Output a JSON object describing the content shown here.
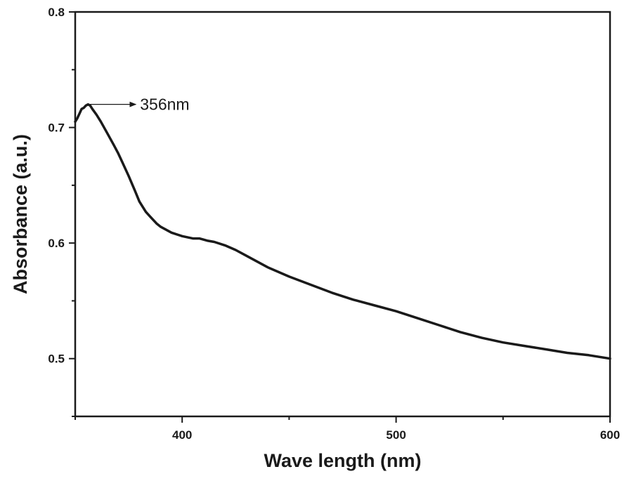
{
  "chart_data": {
    "type": "line",
    "xlabel": "Wave length (nm)",
    "ylabel": "Absorbance (a.u.)",
    "xlim": [
      350,
      600
    ],
    "ylim": [
      0.45,
      0.8
    ],
    "x_ticks": [
      400,
      500,
      600
    ],
    "y_ticks": [
      0.5,
      0.6,
      0.7,
      0.8
    ],
    "x_tick_labels": [
      "400",
      "500",
      "600"
    ],
    "y_tick_labels": [
      "0.5",
      "0.6",
      "0.7",
      "0.8"
    ],
    "grid": false,
    "legend": "none",
    "line_color": "#1a1a1a",
    "annotation": {
      "text": "356nm",
      "x": 356,
      "y": 0.72
    },
    "series": [
      {
        "x": [
          350,
          351,
          352,
          353,
          354,
          355,
          356,
          357,
          358,
          360,
          362,
          365,
          368,
          370,
          372,
          375,
          378,
          380,
          383,
          385,
          388,
          390,
          395,
          400,
          405,
          408,
          410,
          412,
          415,
          420,
          425,
          430,
          440,
          450,
          460,
          470,
          480,
          490,
          500,
          510,
          520,
          530,
          540,
          550,
          560,
          570,
          580,
          590,
          600
        ],
        "y": [
          0.705,
          0.708,
          0.712,
          0.716,
          0.717,
          0.719,
          0.72,
          0.719,
          0.716,
          0.711,
          0.705,
          0.695,
          0.685,
          0.678,
          0.67,
          0.658,
          0.645,
          0.636,
          0.627,
          0.623,
          0.617,
          0.614,
          0.609,
          0.606,
          0.604,
          0.604,
          0.603,
          0.602,
          0.601,
          0.598,
          0.594,
          0.589,
          0.579,
          0.571,
          0.564,
          0.557,
          0.551,
          0.546,
          0.541,
          0.535,
          0.529,
          0.523,
          0.518,
          0.514,
          0.511,
          0.508,
          0.505,
          0.503,
          0.5
        ]
      }
    ]
  }
}
